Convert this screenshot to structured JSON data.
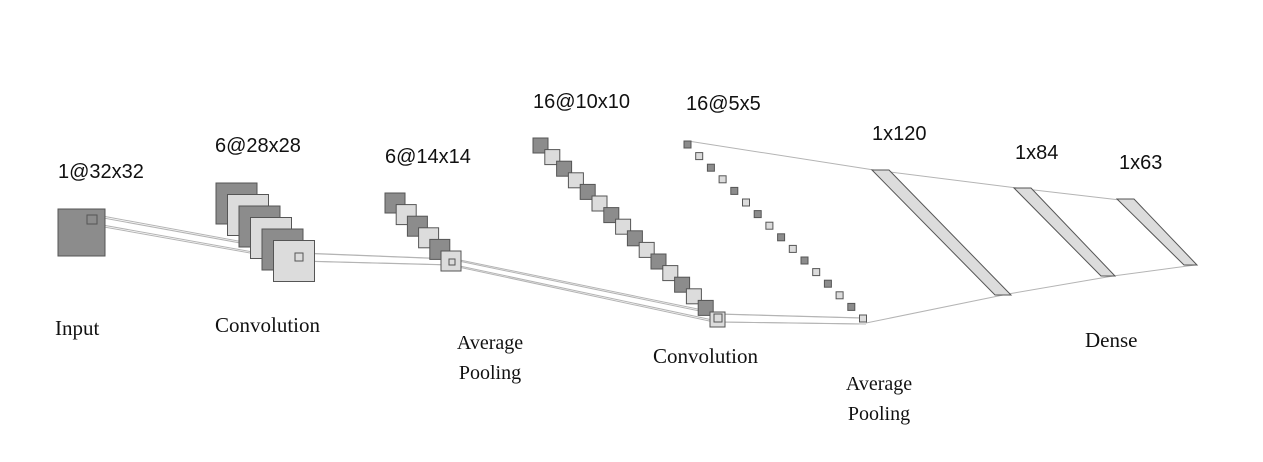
{
  "diagram": {
    "layers": [
      {
        "id": "input",
        "dims": "1@32x32",
        "label": "Input"
      },
      {
        "id": "conv1",
        "dims": "6@28x28",
        "label": "Convolution"
      },
      {
        "id": "pool1",
        "dims": "6@14x14",
        "label_line1": "Average",
        "label_line2": "Pooling"
      },
      {
        "id": "conv2",
        "dims": "16@10x10",
        "label": "Convolution"
      },
      {
        "id": "pool2",
        "dims": "16@5x5",
        "label_line1": "Average",
        "label_line2": "Pooling"
      },
      {
        "id": "fc1",
        "dims": "1x120"
      },
      {
        "id": "fc2",
        "dims": "1x84"
      },
      {
        "id": "fc3",
        "dims": "1x63"
      }
    ],
    "dense_label": "Dense",
    "colors": {
      "dark_fill": "#8c8c8c",
      "light_fill": "#dcdcdc",
      "stroke": "#555555",
      "connector": "#b4b4b4"
    }
  }
}
